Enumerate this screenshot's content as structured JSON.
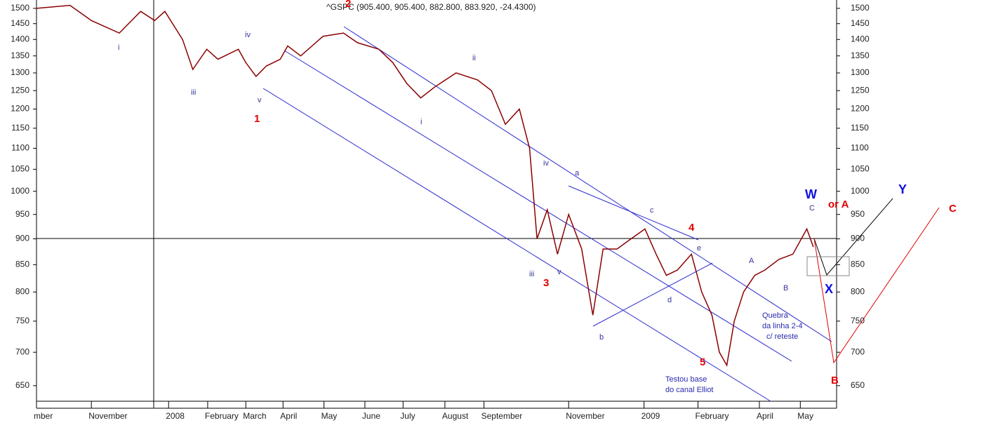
{
  "chart_data": {
    "type": "line",
    "title": "^GSPC (905.400, 905.400, 882.800, 883.920, -24.4300)",
    "x": [
      0,
      3.6,
      5.9,
      8.9,
      11.2,
      12.7,
      13.8,
      15.7,
      16.8,
      18.3,
      19.5,
      21.7,
      22.5,
      23.6,
      24.7,
      26.2,
      27,
      28.4,
      30.8,
      33,
      34.5,
      36.8,
      38.3,
      39.8,
      41.3,
      42.8,
      45.1,
      47.4,
      48.9,
      50.4,
      51.9,
      53,
      53.8,
      54.9,
      56,
      57.2,
      58.6,
      59.8,
      60.9,
      62.4,
      63.9,
      65.4,
      66.6,
      67.7,
      68.9,
      70.4,
      71.5,
      72.6,
      73.4,
      74.2,
      75,
      76,
      77.2,
      78.3,
      79.8,
      81.3,
      82.8,
      83.5
    ],
    "values": [
      1500,
      1510,
      1460,
      1420,
      1490,
      1460,
      1490,
      1400,
      1310,
      1370,
      1340,
      1370,
      1330,
      1290,
      1320,
      1340,
      1380,
      1350,
      1410,
      1420,
      1390,
      1370,
      1330,
      1270,
      1230,
      1260,
      1300,
      1280,
      1250,
      1160,
      1200,
      1100,
      900,
      960,
      870,
      950,
      880,
      760,
      880,
      880,
      900,
      920,
      870,
      830,
      840,
      870,
      800,
      760,
      700,
      680,
      750,
      800,
      830,
      840,
      860,
      870,
      920,
      884
    ],
    "color": "#8b0000",
    "log_scale": true,
    "xlim": [
      0,
      86
    ],
    "xticks": [
      {
        "value": 0,
        "label": "mber"
      },
      {
        "value": 5.9,
        "label": "November"
      },
      {
        "value": 14.2,
        "label": "2008"
      },
      {
        "value": 18.4,
        "label": "February"
      },
      {
        "value": 22.5,
        "label": "March"
      },
      {
        "value": 26.5,
        "label": "April"
      },
      {
        "value": 30.9,
        "label": "May"
      },
      {
        "value": 35.3,
        "label": "June"
      },
      {
        "value": 39.4,
        "label": "July"
      },
      {
        "value": 43.9,
        "label": "August"
      },
      {
        "value": 48.1,
        "label": "September"
      },
      {
        "value": 57.2,
        "label": "November"
      },
      {
        "value": 65.3,
        "label": "2009"
      },
      {
        "value": 71.1,
        "label": "February"
      },
      {
        "value": 77.7,
        "label": "April"
      },
      {
        "value": 82.1,
        "label": "May"
      }
    ],
    "ylim": [
      628,
      1528
    ],
    "yticks": [
      650,
      700,
      750,
      800,
      850,
      900,
      950,
      1000,
      1050,
      1100,
      1150,
      1200,
      1250,
      1300,
      1350,
      1400,
      1450,
      1500
    ]
  },
  "annotations": [
    "i",
    "iii",
    "iv",
    "v",
    "1",
    "2",
    "ii",
    "i",
    "iv",
    "a",
    "iii",
    "3",
    "v",
    "b",
    "c",
    "4",
    "e",
    "d",
    "5",
    "A",
    "B",
    "C",
    "W",
    "or A",
    "Y",
    "X",
    "B",
    "C",
    "Quebra",
    "da linha 2-4",
    "c/ reteste",
    "Testou base",
    "do canal Elliot"
  ]
}
